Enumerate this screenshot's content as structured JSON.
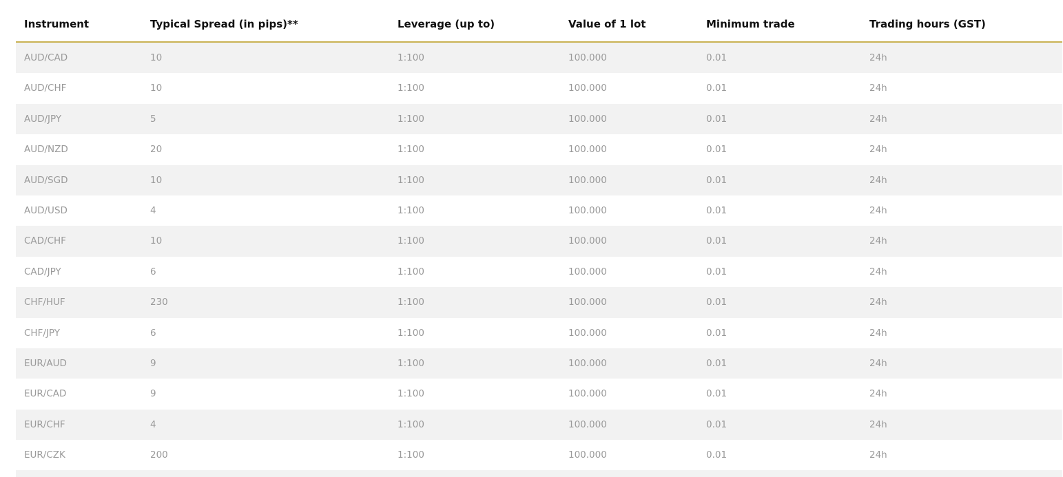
{
  "table": {
    "header": [
      "Instrument",
      "Typical Spread (in pips)**",
      "Leverage (up to)",
      "Value of 1 lot",
      "Minimum trade",
      "Trading hours (GST)"
    ],
    "rows": [
      [
        "AUD/CAD",
        "10",
        "1:100",
        "100.000",
        "0.01",
        "24h"
      ],
      [
        "AUD/CHF",
        "10",
        "1:100",
        "100.000",
        "0.01",
        "24h"
      ],
      [
        "AUD/JPY",
        "5",
        "1:100",
        "100.000",
        "0.01",
        "24h"
      ],
      [
        "AUD/NZD",
        "20",
        "1:100",
        "100.000",
        "0.01",
        "24h"
      ],
      [
        "AUD/SGD",
        "10",
        "1:100",
        "100.000",
        "0.01",
        "24h"
      ],
      [
        "AUD/USD",
        "4",
        "1:100",
        "100.000",
        "0.01",
        "24h"
      ],
      [
        "CAD/CHF",
        "10",
        "1:100",
        "100.000",
        "0.01",
        "24h"
      ],
      [
        "CAD/JPY",
        "6",
        "1:100",
        "100.000",
        "0.01",
        "24h"
      ],
      [
        "CHF/HUF",
        "230",
        "1:100",
        "100.000",
        "0.01",
        "24h"
      ],
      [
        "CHF/JPY",
        "6",
        "1:100",
        "100.000",
        "0.01",
        "24h"
      ],
      [
        "EUR/AUD",
        "9",
        "1:100",
        "100.000",
        "0.01",
        "24h"
      ],
      [
        "EUR/CAD",
        "9",
        "1:100",
        "100.000",
        "0.01",
        "24h"
      ],
      [
        "EUR/CHF",
        "4",
        "1:100",
        "100.000",
        "0.01",
        "24h"
      ],
      [
        "EUR/CZK",
        "200",
        "1:100",
        "100.000",
        "0.01",
        "24h"
      ]
    ]
  }
}
